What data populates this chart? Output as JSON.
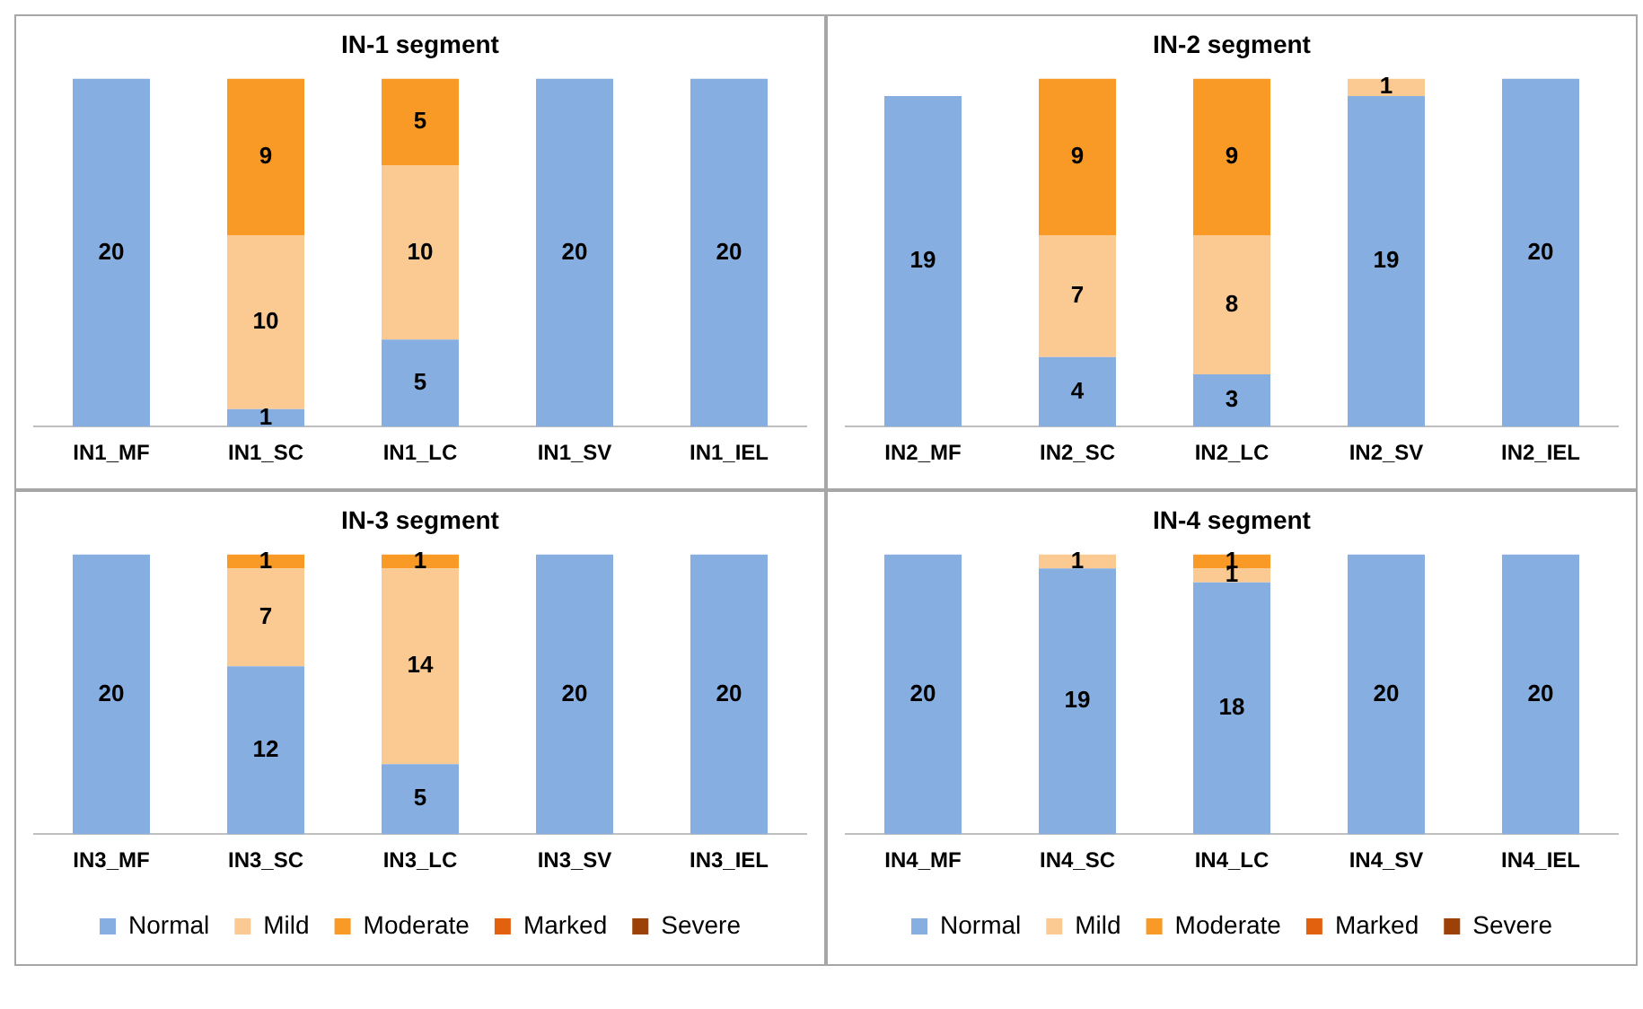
{
  "chart_data": [
    {
      "type": "bar",
      "title": "IN-1 segment",
      "stacked": true,
      "categories": [
        "IN1_MF",
        "IN1_SC",
        "IN1_LC",
        "IN1_SV",
        "IN1_IEL"
      ],
      "ylim": [
        0,
        20
      ],
      "tick_labels": "x",
      "grid": false,
      "legend": false,
      "data_labels": true,
      "series": [
        {
          "color": "#86aee0",
          "values": [
            20,
            1,
            5,
            20,
            20
          ]
        },
        {
          "color": "#fbca92",
          "values": [
            null,
            10,
            10,
            null,
            null
          ]
        },
        {
          "color": "#f89a25",
          "values": [
            null,
            9,
            5,
            null,
            null
          ]
        }
      ]
    },
    {
      "type": "bar",
      "title": "IN-2 segment",
      "stacked": true,
      "categories": [
        "IN2_MF",
        "IN2_SC",
        "IN2_LC",
        "IN2_SV",
        "IN2_IEL"
      ],
      "ylim": [
        0,
        20
      ],
      "tick_labels": "x",
      "grid": false,
      "legend": false,
      "data_labels": true,
      "series": [
        {
          "color": "#86aee0",
          "values": [
            19,
            4,
            3,
            19,
            20
          ]
        },
        {
          "color": "#fbca92",
          "values": [
            null,
            7,
            8,
            1,
            null
          ]
        },
        {
          "color": "#f89a25",
          "values": [
            null,
            9,
            9,
            null,
            null
          ]
        }
      ]
    },
    {
      "type": "bar",
      "title": "IN-3 segment",
      "stacked": true,
      "categories": [
        "IN3_MF",
        "IN3_SC",
        "IN3_LC",
        "IN3_SV",
        "IN3_IEL"
      ],
      "ylim": [
        0,
        20
      ],
      "tick_labels": "x",
      "grid": false,
      "legend": "bottom",
      "data_labels": true,
      "series": [
        {
          "name": "Normal",
          "color": "#86aee0",
          "values": [
            20,
            12,
            5,
            20,
            20
          ]
        },
        {
          "name": "Mild",
          "color": "#fbca92",
          "values": [
            null,
            7,
            14,
            null,
            null
          ]
        },
        {
          "name": "Moderate",
          "color": "#f89a25",
          "values": [
            null,
            1,
            1,
            null,
            null
          ]
        },
        {
          "name": "Marked",
          "color": "#e2610f",
          "values": [
            null,
            null,
            null,
            null,
            null
          ]
        },
        {
          "name": "Severe",
          "color": "#9c4208",
          "values": [
            null,
            null,
            null,
            null,
            null
          ]
        }
      ]
    },
    {
      "type": "bar",
      "title": "IN-4 segment",
      "stacked": true,
      "categories": [
        "IN4_MF",
        "IN4_SC",
        "IN4_LC",
        "IN4_SV",
        "IN4_IEL"
      ],
      "ylim": [
        0,
        20
      ],
      "tick_labels": "x",
      "grid": false,
      "legend": "bottom",
      "data_labels": true,
      "series": [
        {
          "name": "Normal",
          "color": "#86aee0",
          "values": [
            20,
            19,
            18,
            20,
            20
          ]
        },
        {
          "name": "Mild",
          "color": "#fbca92",
          "values": [
            null,
            1,
            1,
            null,
            null
          ]
        },
        {
          "name": "Moderate",
          "color": "#f89a25",
          "values": [
            null,
            null,
            1,
            null,
            null
          ]
        },
        {
          "name": "Marked",
          "color": "#e2610f",
          "values": [
            null,
            null,
            null,
            null,
            null
          ]
        },
        {
          "name": "Severe",
          "color": "#9c4208",
          "values": [
            null,
            null,
            null,
            null,
            null
          ]
        }
      ]
    }
  ]
}
